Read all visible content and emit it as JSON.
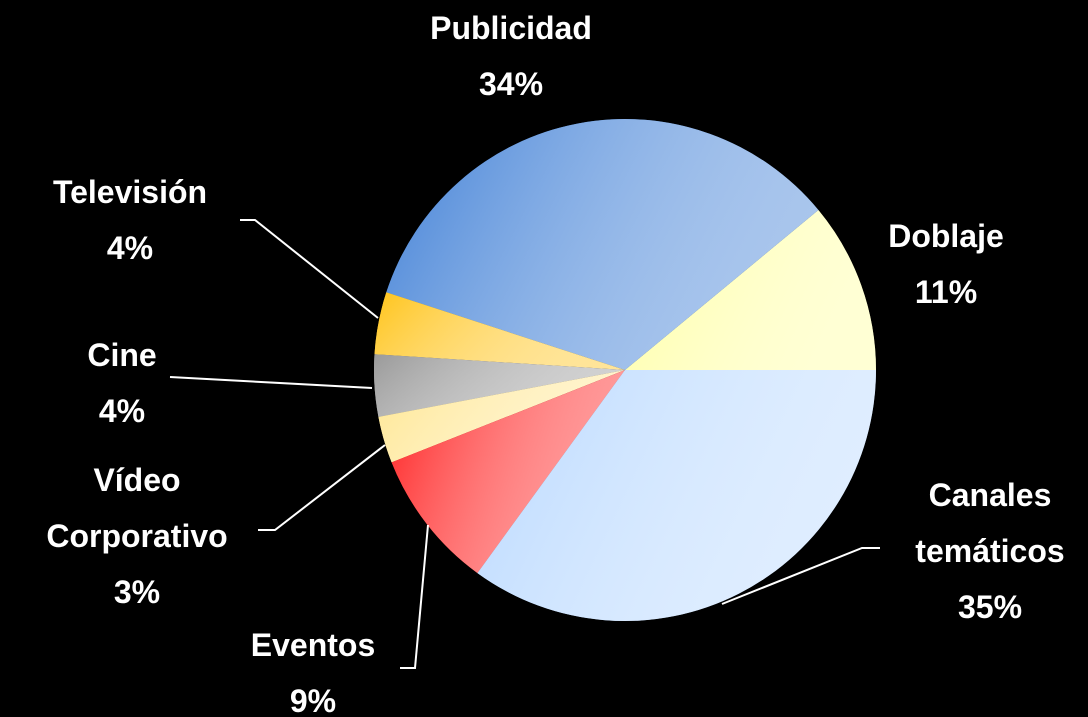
{
  "chart_data": {
    "type": "pie",
    "categories": [
      "Doblaje",
      "Publicidad",
      "Televisión",
      "Cine",
      "Vídeo Corporativo",
      "Eventos",
      "Canales temáticos"
    ],
    "values": [
      11,
      34,
      4,
      4,
      3,
      9,
      35
    ],
    "value_labels": [
      "11%",
      "34%",
      "4%",
      "4%",
      "3%",
      "9%",
      "35%"
    ],
    "colors": [
      "#ffffa0",
      "#3f7fd6",
      "#ffc41a",
      "#9a9a9a",
      "#ffe690",
      "#ff2020",
      "#b8d8ff"
    ]
  }
}
